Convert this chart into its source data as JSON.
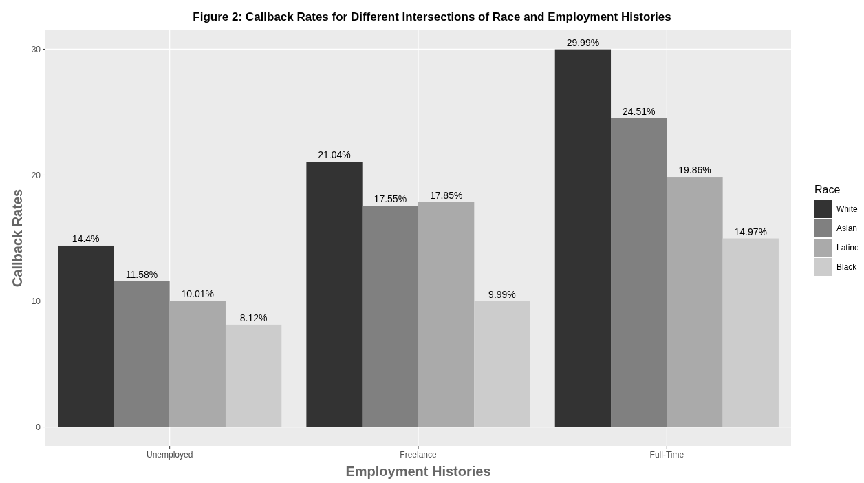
{
  "chart_data": {
    "type": "bar",
    "title": "Figure 2: Callback Rates for Different Intersections of Race and Employment Histories",
    "xlabel": "Employment Histories",
    "ylabel": "Callback Rates",
    "legend_title": "Race",
    "categories": [
      "Unemployed",
      "Freelance",
      "Full-Time"
    ],
    "series": [
      {
        "name": "White",
        "color": "#333333",
        "values": [
          14.4,
          21.04,
          29.99
        ],
        "value_labels": [
          "14.4%",
          "21.04%",
          "29.99%"
        ]
      },
      {
        "name": "Asian",
        "color": "#808080",
        "values": [
          11.58,
          17.55,
          24.51
        ],
        "value_labels": [
          "11.58%",
          "17.55%",
          "24.51%"
        ]
      },
      {
        "name": "Latino",
        "color": "#aaaaaa",
        "values": [
          10.01,
          17.85,
          19.86
        ],
        "value_labels": [
          "10.01%",
          "17.85%",
          "19.86%"
        ]
      },
      {
        "name": "Black",
        "color": "#cccccc",
        "values": [
          8.12,
          9.99,
          14.97
        ],
        "value_labels": [
          "8.12%",
          "9.99%",
          "14.97%"
        ]
      }
    ],
    "ylim": [
      -1.5,
      31.5
    ],
    "yticks": [
      0,
      10,
      20,
      30
    ],
    "grid": true,
    "legend": "right"
  }
}
